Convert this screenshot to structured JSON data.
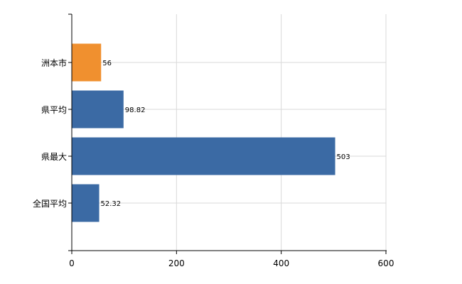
{
  "chart_data": {
    "type": "bar",
    "orientation": "horizontal",
    "categories": [
      "洲本市",
      "県平均",
      "県最大",
      "全国平均"
    ],
    "values": [
      56,
      98.82,
      503,
      52.32
    ],
    "value_labels": [
      "56",
      "98.82",
      "503",
      "52.32"
    ],
    "bar_colors": [
      "#f0902f",
      "#3b6aa4",
      "#3b6aa4",
      "#3b6aa4"
    ],
    "xlim": [
      0,
      600
    ],
    "xticks": [
      0,
      200,
      400,
      600
    ],
    "xtick_labels": [
      "0",
      "200",
      "400",
      "600"
    ],
    "grid": true,
    "legend": false
  }
}
